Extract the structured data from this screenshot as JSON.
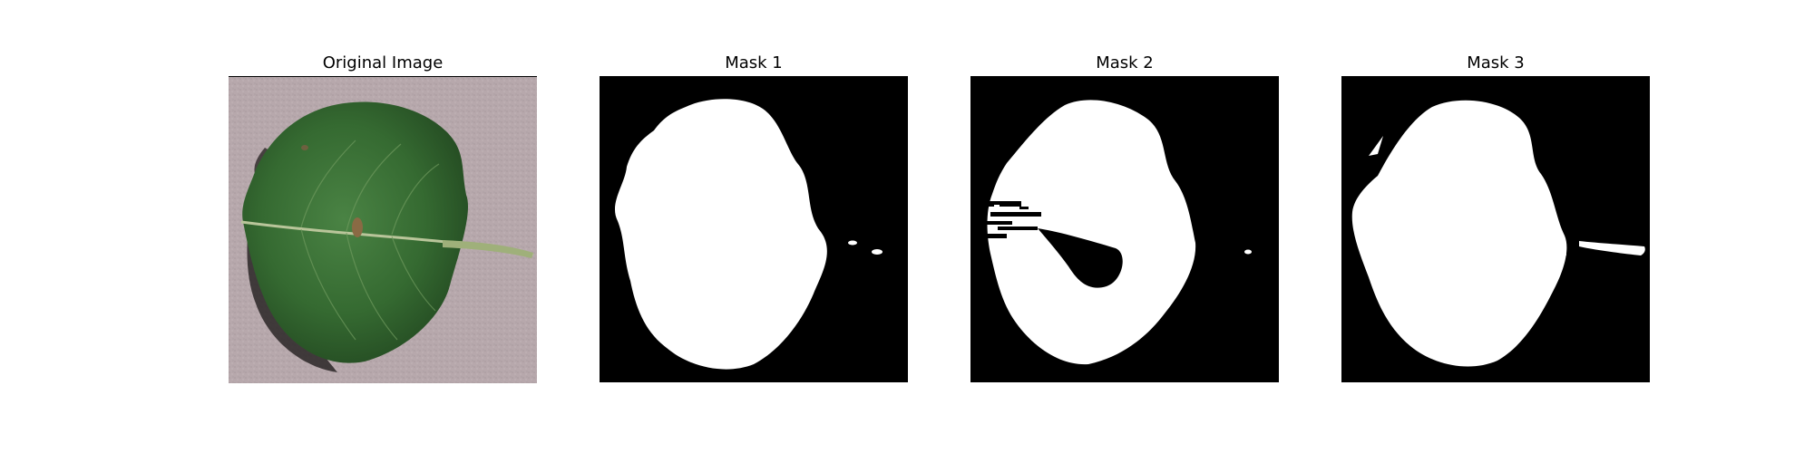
{
  "figure": {
    "panels": [
      {
        "title": "Original Image",
        "kind": "photo",
        "subject": "leaf-photo"
      },
      {
        "title": "Mask 1",
        "kind": "mask"
      },
      {
        "title": "Mask 2",
        "kind": "mask"
      },
      {
        "title": "Mask 3",
        "kind": "mask"
      }
    ]
  },
  "colors": {
    "background": "#ffffff",
    "mask_background": "#000000",
    "mask_foreground": "#ffffff",
    "photo_background": "#b7a8ac",
    "leaf_dark": "#2f5a2c",
    "leaf_mid": "#3f7a3a",
    "leaf_vein": "#b9c59a",
    "leaf_shadow": "#2a2626",
    "leaf_spot": "#8a6a44"
  }
}
